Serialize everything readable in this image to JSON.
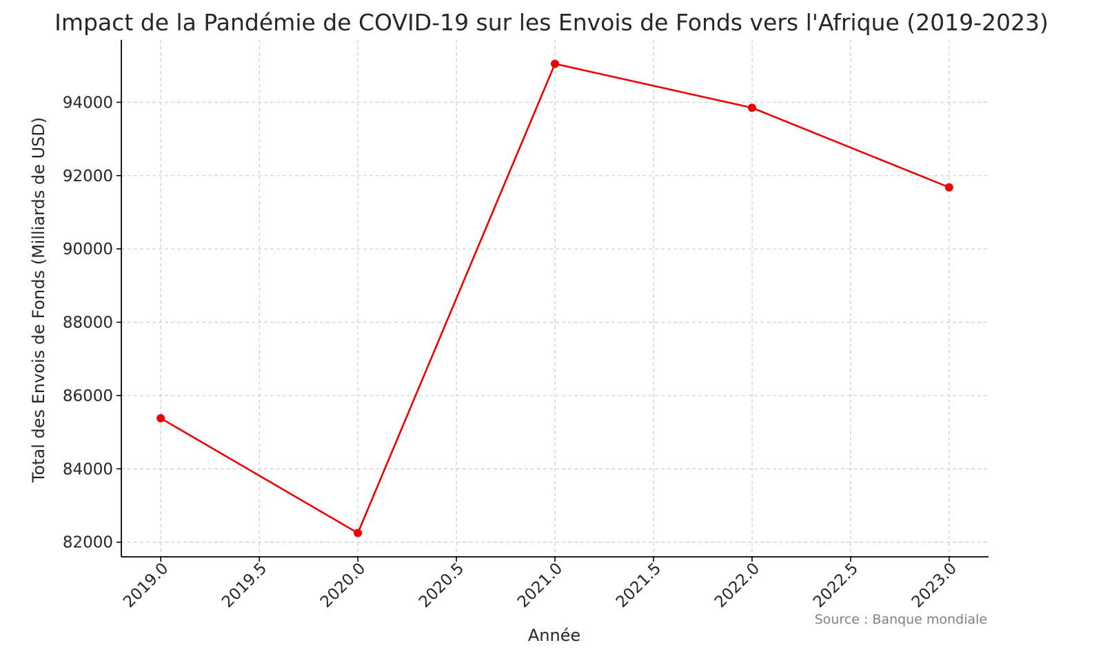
{
  "chart_data": {
    "type": "line",
    "title": "Impact de la Pandémie de COVID-19 sur les Envois de Fonds vers l'Afrique (2019-2023)",
    "xlabel": "Année",
    "ylabel": "Total des Envois de Fonds (Milliards de USD)",
    "source": "Source : Banque mondiale",
    "x": [
      2019,
      2020,
      2021,
      2022,
      2023
    ],
    "series": [
      {
        "values": [
          85380,
          82250,
          95050,
          93850,
          91680
        ],
        "color": "#ee0000",
        "marker": "circle"
      }
    ],
    "xlim": [
      2018.8,
      2023.2
    ],
    "ylim": [
      81600,
      95700
    ],
    "xticks": [
      2019.0,
      2019.5,
      2020.0,
      2020.5,
      2021.0,
      2021.5,
      2022.0,
      2022.5,
      2023.0
    ],
    "xtick_labels": [
      "2019.0",
      "2019.5",
      "2020.0",
      "2020.5",
      "2021.0",
      "2021.5",
      "2022.0",
      "2022.5",
      "2023.0"
    ],
    "yticks": [
      82000,
      84000,
      86000,
      88000,
      90000,
      92000,
      94000
    ],
    "ytick_labels": [
      "82000",
      "84000",
      "86000",
      "88000",
      "90000",
      "92000",
      "94000"
    ],
    "grid": true,
    "legend": "none"
  }
}
